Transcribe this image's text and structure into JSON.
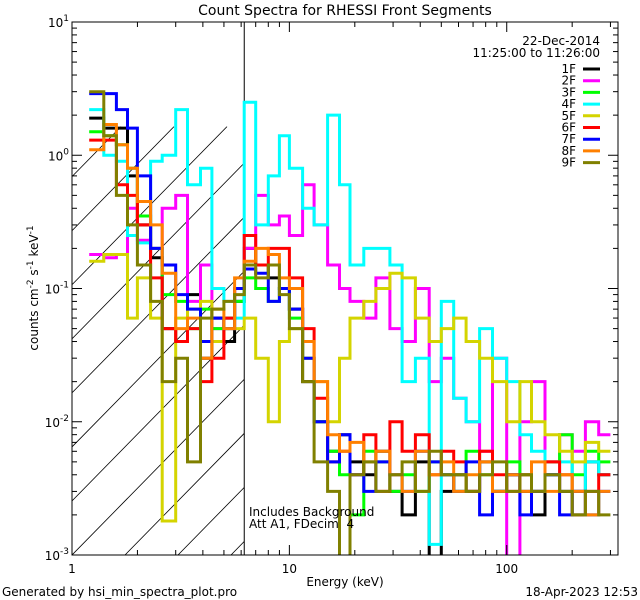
{
  "chart_data": {
    "type": "line",
    "title": "Count Spectra for RHESSI Front Segments",
    "xlabel": "Energy (keV)",
    "ylabel": {
      "base": "counts cm",
      "parts": [
        [
          "cm",
          "-2"
        ],
        [
          "s",
          "-1"
        ],
        [
          "keV",
          "-1"
        ]
      ],
      "text": "counts cm-2 s-1 keV-1"
    },
    "xscale": "log",
    "yscale": "log",
    "xlim": [
      1,
      325
    ],
    "ylim": [
      0.001,
      10
    ],
    "x_ticks": [
      {
        "value": 1,
        "label": "1"
      },
      {
        "value": 10,
        "label": "10"
      },
      {
        "value": 100,
        "label": "100"
      }
    ],
    "y_ticks": [
      {
        "value": 10,
        "base": "10",
        "exp": "1"
      },
      {
        "value": 1,
        "base": "10",
        "exp": "0"
      },
      {
        "value": 0.1,
        "base": "10",
        "exp": "-1"
      },
      {
        "value": 0.01,
        "base": "10",
        "exp": "-2"
      },
      {
        "value": 0.001,
        "base": "10",
        "exp": "-3"
      }
    ],
    "hatched_region_max_energy": 6.2,
    "date": "22-Dec-2014",
    "time_range": "11:25:00 to 11:26:00",
    "annotations": [
      "Includes Background",
      "Att A1, FDecim  4"
    ],
    "legend_position": "top-right",
    "energy_edges": [
      1.2,
      1.4,
      1.6,
      1.8,
      2.0,
      2.3,
      2.6,
      3.0,
      3.4,
      3.9,
      4.4,
      5.0,
      5.6,
      6.2,
      7,
      8,
      9,
      10,
      11.5,
      13,
      15,
      17,
      19,
      22,
      25,
      29,
      33,
      38,
      44,
      50,
      57,
      65,
      75,
      86,
      100,
      115,
      130,
      150,
      175,
      200,
      230,
      265,
      300
    ],
    "series": [
      {
        "name": "1F",
        "color": "#000000",
        "values": [
          1.9,
          1.6,
          1.6,
          0.7,
          0.3,
          0.17,
          0.05,
          0.04,
          0.09,
          0.03,
          0.06,
          0.04,
          0.08,
          0.2,
          0.15,
          0.12,
          0.1,
          0.07,
          0.02,
          0.01,
          0.006,
          0.008,
          0.005,
          0.004,
          0.006,
          0.003,
          0.002,
          0.005,
          0.0009,
          0.003,
          0.004,
          0.003,
          0.005,
          0.003,
          0.004,
          0.003,
          0.002,
          0.004,
          0.003,
          0.003,
          0.005,
          0.004
        ]
      },
      {
        "name": "2F",
        "color": "#ff00ff",
        "values": [
          0.18,
          0.17,
          0.18,
          0.4,
          0.23,
          0.2,
          0.4,
          0.5,
          0.08,
          0.15,
          0.05,
          0.06,
          0.1,
          0.2,
          0.5,
          0.3,
          0.35,
          0.25,
          0.6,
          0.3,
          0.15,
          0.1,
          0.08,
          0.06,
          0.12,
          0.05,
          0.04,
          0.1,
          0.02,
          0.03,
          0.015,
          0.01,
          0.006,
          0.03,
          0.0009,
          0.01,
          0.02,
          0.005,
          0.008,
          0.006,
          0.01,
          0.008
        ]
      },
      {
        "name": "3F",
        "color": "#00ff00",
        "values": [
          1.5,
          1.4,
          1.2,
          0.8,
          0.35,
          0.2,
          0.09,
          0.08,
          0.05,
          0.07,
          0.05,
          0.06,
          0.08,
          0.12,
          0.1,
          0.08,
          0.1,
          0.06,
          0.03,
          0.01,
          0.006,
          0.004,
          0.002,
          0.006,
          0.005,
          0.003,
          0.004,
          0.003,
          0.005,
          0.004,
          0.003,
          0.006,
          0.004,
          0.003,
          0.005,
          0.004,
          0.003,
          0.005,
          0.008,
          0.004,
          0.006,
          0.005
        ]
      },
      {
        "name": "4F",
        "color": "#00ffff",
        "values": [
          2.2,
          1.0,
          0.9,
          0.25,
          0.22,
          0.9,
          1.0,
          2.2,
          0.6,
          0.8,
          0.1,
          0.08,
          0.06,
          2.5,
          0.3,
          0.7,
          1.4,
          0.8,
          0.4,
          0.3,
          2.0,
          0.6,
          0.15,
          0.2,
          0.2,
          0.15,
          0.02,
          0.03,
          0.0012,
          0.08,
          0.015,
          0.01,
          0.05,
          0.03,
          0.02,
          0.008,
          0.006,
          0.004,
          0.005,
          0.002,
          0.005,
          0.004
        ]
      },
      {
        "name": "5F",
        "color": "#d4d400",
        "values": [
          0.16,
          0.18,
          0.18,
          0.06,
          0.12,
          0.06,
          0.0018,
          0.06,
          0.07,
          0.08,
          0.04,
          0.05,
          0.05,
          0.06,
          0.03,
          0.01,
          0.04,
          0.05,
          0.03,
          0.02,
          0.01,
          0.03,
          0.06,
          0.08,
          0.1,
          0.13,
          0.12,
          0.06,
          0.04,
          0.05,
          0.06,
          0.04,
          0.03,
          0.02,
          0.01,
          0.02,
          0.01,
          0.008,
          0.006,
          0.005,
          0.007,
          0.006
        ]
      },
      {
        "name": "6F",
        "color": "#ff0000",
        "values": [
          1.3,
          1.3,
          0.6,
          0.5,
          0.3,
          0.12,
          0.05,
          0.04,
          0.05,
          0.02,
          0.03,
          0.06,
          0.1,
          0.25,
          0.15,
          0.2,
          0.2,
          0.12,
          0.05,
          0.015,
          0.005,
          0.006,
          0.004,
          0.008,
          0.003,
          0.01,
          0.006,
          0.008,
          0.004,
          0.006,
          0.005,
          0.003,
          0.006,
          0.004,
          0.003,
          0.004,
          0.003,
          0.005,
          0.004,
          0.002,
          0.003,
          0.004
        ]
      },
      {
        "name": "7F",
        "color": "#0000ff",
        "values": [
          2.9,
          2.9,
          2.2,
          1.6,
          0.7,
          0.2,
          0.15,
          0.09,
          0.07,
          0.04,
          0.06,
          0.05,
          0.1,
          0.14,
          0.13,
          0.08,
          0.1,
          0.07,
          0.03,
          0.01,
          0.005,
          0.008,
          0.004,
          0.003,
          0.005,
          0.004,
          0.003,
          0.006,
          0.005,
          0.004,
          0.003,
          0.005,
          0.002,
          0.003,
          0.004,
          0.002,
          0.003,
          0.004,
          0.002,
          0.003,
          0.002,
          0.003
        ]
      },
      {
        "name": "8F",
        "color": "#ff8000",
        "values": [
          1.1,
          1.7,
          1.2,
          0.8,
          0.45,
          0.3,
          0.13,
          0.05,
          0.06,
          0.03,
          0.07,
          0.05,
          0.12,
          0.16,
          0.2,
          0.18,
          0.12,
          0.1,
          0.04,
          0.02,
          0.008,
          0.006,
          0.007,
          0.005,
          0.006,
          0.004,
          0.003,
          0.006,
          0.004,
          0.005,
          0.003,
          0.004,
          0.005,
          0.003,
          0.004,
          0.003,
          0.005,
          0.003,
          0.004,
          0.003,
          0.002,
          0.003
        ]
      },
      {
        "name": "9F",
        "color": "#808000",
        "values": [
          3.0,
          1.4,
          0.5,
          0.3,
          0.15,
          0.08,
          0.02,
          0.03,
          0.005,
          0.06,
          0.07,
          0.08,
          0.09,
          0.15,
          0.12,
          0.15,
          0.09,
          0.05,
          0.02,
          0.005,
          0.003,
          0.0009,
          0.004,
          0.005,
          0.003,
          0.004,
          0.005,
          0.003,
          0.006,
          0.004,
          0.004,
          0.003,
          0.004,
          0.005,
          0.003,
          0.004,
          0.003,
          0.004,
          0.003,
          0.002,
          0.003,
          0.002
        ]
      }
    ]
  },
  "footer": {
    "generated_by": "Generated by hsi_min_spectra_plot.pro",
    "timestamp": "18-Apr-2023 12:53"
  }
}
